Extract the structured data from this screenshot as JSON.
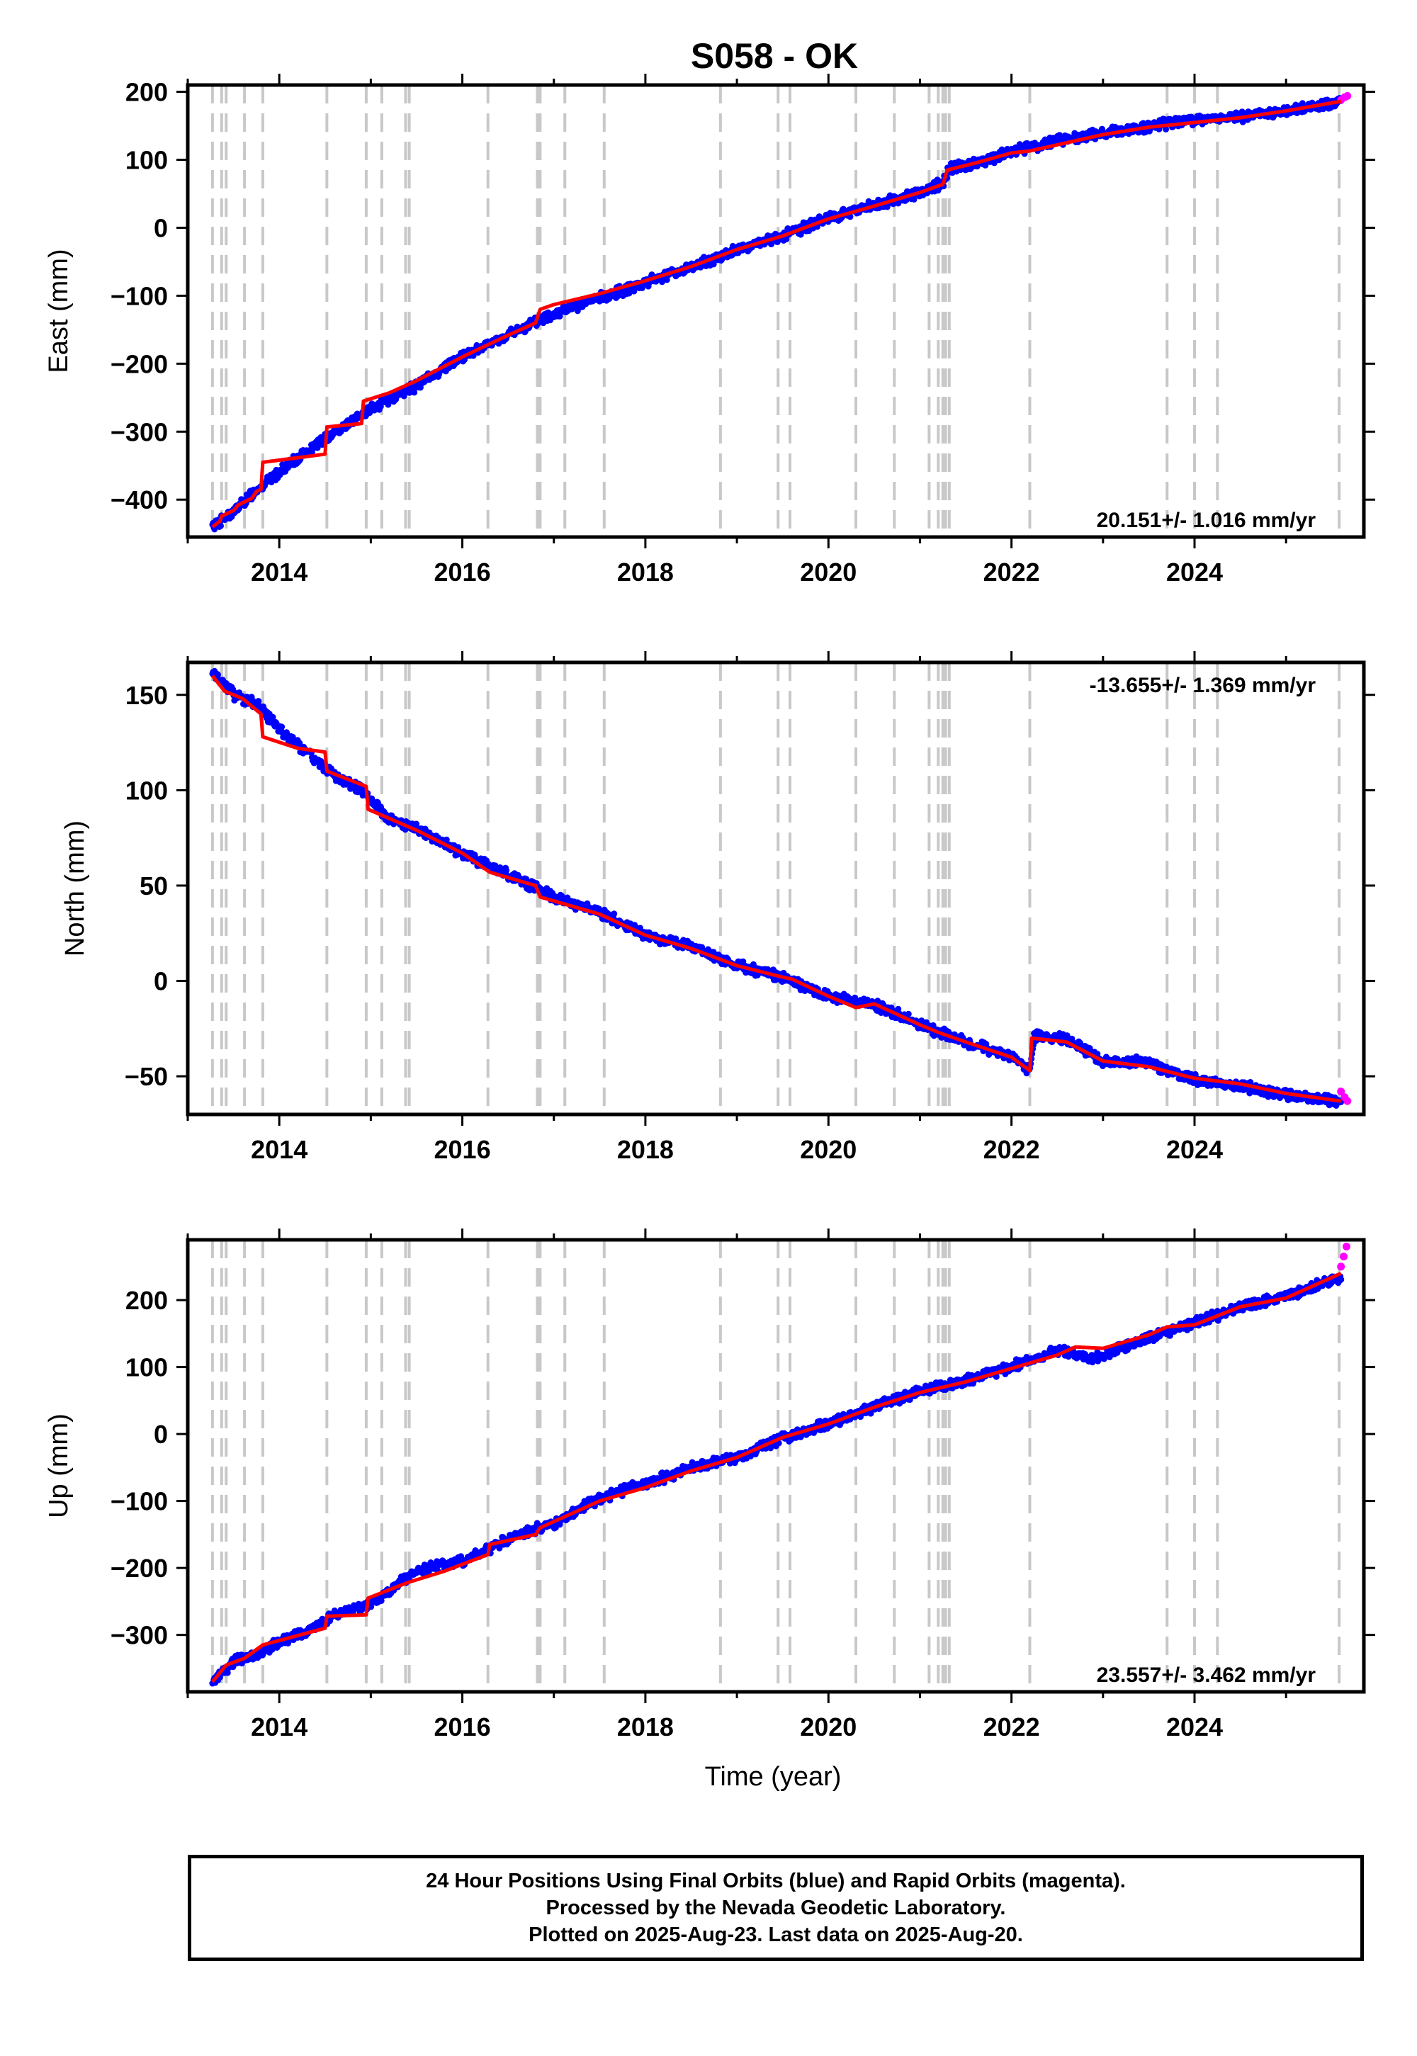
{
  "title": "S058 - OK",
  "footer": {
    "line1": "24 Hour Positions Using Final Orbits (blue) and Rapid Orbits (magenta).",
    "line2": "Processed by the Nevada Geodetic Laboratory.",
    "line3": "Plotted on 2025-Aug-23. Last data on 2025-Aug-20."
  },
  "colors": {
    "final_orbits": "#0000ff",
    "rapid_orbits": "#ff00ff",
    "model": "#ff0000",
    "event_lines": "#c8c8c8",
    "frame": "#000000"
  },
  "chart_data": [
    {
      "type": "scatter",
      "component": "East",
      "ylabel": "East (mm)",
      "xlabel": "",
      "xlim": [
        2013.0,
        2025.85
      ],
      "ylim": [
        -455,
        210
      ],
      "xticks": [
        2014,
        2016,
        2018,
        2020,
        2022,
        2024
      ],
      "yticks": [
        -400,
        -300,
        -200,
        -100,
        0,
        100,
        200
      ],
      "rate_label": "20.151+/- 1.016 mm/yr",
      "rate_position": "bottom-right",
      "grid": false,
      "final_series": [
        [
          2013.27,
          -440
        ],
        [
          2013.5,
          -418
        ],
        [
          2013.75,
          -385
        ],
        [
          2014.0,
          -360
        ],
        [
          2014.3,
          -330
        ],
        [
          2014.6,
          -300
        ],
        [
          2014.85,
          -280
        ],
        [
          2015.2,
          -252
        ],
        [
          2015.5,
          -232
        ],
        [
          2016.0,
          -190
        ],
        [
          2016.5,
          -158
        ],
        [
          2017.0,
          -126
        ],
        [
          2017.5,
          -104
        ],
        [
          2018.0,
          -80
        ],
        [
          2018.5,
          -58
        ],
        [
          2019.0,
          -33
        ],
        [
          2019.5,
          -12
        ],
        [
          2020.0,
          15
        ],
        [
          2020.5,
          32
        ],
        [
          2021.0,
          52
        ],
        [
          2021.25,
          66
        ],
        [
          2021.32,
          87
        ],
        [
          2021.6,
          95
        ],
        [
          2022.0,
          112
        ],
        [
          2022.5,
          128
        ],
        [
          2022.9,
          137
        ],
        [
          2023.5,
          148
        ],
        [
          2023.9,
          158
        ],
        [
          2024.5,
          163
        ],
        [
          2025.0,
          172
        ],
        [
          2025.6,
          185
        ]
      ],
      "rapid_series": [
        [
          2025.6,
          188
        ],
        [
          2025.64,
          192
        ],
        [
          2025.67,
          194
        ]
      ],
      "model_series": [
        [
          2013.27,
          -440
        ],
        [
          2013.35,
          -432
        ],
        [
          2013.37,
          -424
        ],
        [
          2013.5,
          -416
        ],
        [
          2013.55,
          -408
        ],
        [
          2013.7,
          -398
        ],
        [
          2013.75,
          -388
        ],
        [
          2013.8,
          -385
        ],
        [
          2013.82,
          -345
        ],
        [
          2014.5,
          -333
        ],
        [
          2014.52,
          -293
        ],
        [
          2014.9,
          -288
        ],
        [
          2014.92,
          -255
        ],
        [
          2015.2,
          -243
        ],
        [
          2015.5,
          -225
        ],
        [
          2016.0,
          -190
        ],
        [
          2016.5,
          -158
        ],
        [
          2016.8,
          -140
        ],
        [
          2016.85,
          -120
        ],
        [
          2017.0,
          -113
        ],
        [
          2017.5,
          -97
        ],
        [
          2018.0,
          -78
        ],
        [
          2018.5,
          -57
        ],
        [
          2019.0,
          -32
        ],
        [
          2019.5,
          -12
        ],
        [
          2020.0,
          13
        ],
        [
          2020.5,
          32
        ],
        [
          2021.0,
          52
        ],
        [
          2021.25,
          64
        ],
        [
          2021.3,
          85
        ],
        [
          2021.6,
          95
        ],
        [
          2022.0,
          110
        ],
        [
          2022.2,
          113
        ],
        [
          2022.5,
          122
        ],
        [
          2023.0,
          137
        ],
        [
          2023.5,
          148
        ],
        [
          2023.8,
          152
        ],
        [
          2024.5,
          162
        ],
        [
          2025.0,
          172
        ],
        [
          2025.6,
          186
        ]
      ],
      "event_years": [
        2013.27,
        2013.37,
        2013.42,
        2013.62,
        2013.82,
        2014.52,
        2014.95,
        2015.12,
        2015.38,
        2015.42,
        2016.28,
        2016.82,
        2016.85,
        2017.12,
        2017.55,
        2018.82,
        2019.45,
        2019.58,
        2020.3,
        2020.72,
        2021.1,
        2021.2,
        2021.25,
        2021.28,
        2021.32,
        2022.2,
        2023.7,
        2024.0,
        2024.25,
        2025.58
      ]
    },
    {
      "type": "scatter",
      "component": "North",
      "ylabel": "North (mm)",
      "xlabel": "",
      "xlim": [
        2013.0,
        2025.85
      ],
      "ylim": [
        -70,
        167
      ],
      "xticks": [
        2014,
        2016,
        2018,
        2020,
        2022,
        2024
      ],
      "yticks": [
        -50,
        0,
        50,
        100,
        150
      ],
      "rate_label": "-13.655+/- 1.369 mm/yr",
      "rate_position": "top-right",
      "grid": false,
      "final_series": [
        [
          2013.27,
          162
        ],
        [
          2013.5,
          150
        ],
        [
          2013.75,
          145
        ],
        [
          2014.0,
          132
        ],
        [
          2014.3,
          120
        ],
        [
          2014.6,
          108
        ],
        [
          2014.9,
          100
        ],
        [
          2015.2,
          85
        ],
        [
          2015.5,
          80
        ],
        [
          2016.0,
          67
        ],
        [
          2016.5,
          56
        ],
        [
          2017.0,
          44
        ],
        [
          2017.5,
          36
        ],
        [
          2018.0,
          24
        ],
        [
          2018.5,
          18
        ],
        [
          2019.0,
          8
        ],
        [
          2019.5,
          2
        ],
        [
          2020.0,
          -8
        ],
        [
          2020.5,
          -12
        ],
        [
          2021.0,
          -23
        ],
        [
          2021.5,
          -32
        ],
        [
          2022.0,
          -40
        ],
        [
          2022.2,
          -47
        ],
        [
          2022.25,
          -29
        ],
        [
          2022.6,
          -30
        ],
        [
          2023.0,
          -42
        ],
        [
          2023.5,
          -43
        ],
        [
          2024.0,
          -52
        ],
        [
          2024.5,
          -55
        ],
        [
          2025.0,
          -60
        ],
        [
          2025.6,
          -63
        ]
      ],
      "rapid_series": [
        [
          2025.6,
          -58
        ],
        [
          2025.64,
          -61
        ],
        [
          2025.67,
          -63
        ]
      ],
      "model_series": [
        [
          2013.27,
          160
        ],
        [
          2013.4,
          152
        ],
        [
          2013.6,
          148
        ],
        [
          2013.8,
          140
        ],
        [
          2013.82,
          128
        ],
        [
          2014.2,
          122
        ],
        [
          2014.5,
          120
        ],
        [
          2014.52,
          110
        ],
        [
          2014.95,
          102
        ],
        [
          2014.97,
          90
        ],
        [
          2015.5,
          79
        ],
        [
          2016.0,
          67
        ],
        [
          2016.3,
          57
        ],
        [
          2016.8,
          50
        ],
        [
          2016.85,
          44
        ],
        [
          2017.5,
          35
        ],
        [
          2018.0,
          24
        ],
        [
          2018.5,
          17
        ],
        [
          2019.0,
          8
        ],
        [
          2019.5,
          2
        ],
        [
          2019.6,
          1
        ],
        [
          2020.0,
          -8
        ],
        [
          2020.3,
          -14
        ],
        [
          2020.5,
          -12
        ],
        [
          2021.0,
          -23
        ],
        [
          2021.2,
          -27
        ],
        [
          2021.5,
          -32
        ],
        [
          2022.0,
          -40
        ],
        [
          2022.2,
          -47
        ],
        [
          2022.22,
          -30
        ],
        [
          2022.6,
          -32
        ],
        [
          2023.0,
          -42
        ],
        [
          2023.5,
          -45
        ],
        [
          2024.0,
          -51
        ],
        [
          2024.5,
          -54
        ],
        [
          2025.0,
          -59
        ],
        [
          2025.6,
          -63
        ]
      ],
      "event_years": [
        2013.27,
        2013.37,
        2013.42,
        2013.62,
        2013.82,
        2014.52,
        2014.95,
        2015.12,
        2015.38,
        2015.42,
        2016.28,
        2016.82,
        2016.85,
        2017.12,
        2017.55,
        2018.82,
        2019.45,
        2019.58,
        2020.3,
        2020.72,
        2021.1,
        2021.2,
        2021.25,
        2021.28,
        2021.32,
        2022.2,
        2023.7,
        2024.0,
        2024.25,
        2025.58
      ]
    },
    {
      "type": "scatter",
      "component": "Up",
      "ylabel": "Up (mm)",
      "xlabel": "Time (year)",
      "xlim": [
        2013.0,
        2025.85
      ],
      "ylim": [
        -385,
        290
      ],
      "xticks": [
        2014,
        2016,
        2018,
        2020,
        2022,
        2024
      ],
      "yticks": [
        -300,
        -200,
        -100,
        0,
        100,
        200
      ],
      "rate_label": "23.557+/- 3.462 mm/yr",
      "rate_position": "bottom-right",
      "grid": false,
      "final_series": [
        [
          2013.27,
          -370
        ],
        [
          2013.5,
          -340
        ],
        [
          2013.75,
          -330
        ],
        [
          2014.0,
          -310
        ],
        [
          2014.3,
          -295
        ],
        [
          2014.6,
          -270
        ],
        [
          2014.9,
          -258
        ],
        [
          2015.2,
          -235
        ],
        [
          2015.5,
          -205
        ],
        [
          2016.0,
          -190
        ],
        [
          2016.3,
          -170
        ],
        [
          2016.6,
          -150
        ],
        [
          2017.0,
          -135
        ],
        [
          2017.5,
          -95
        ],
        [
          2018.0,
          -75
        ],
        [
          2018.5,
          -50
        ],
        [
          2019.0,
          -35
        ],
        [
          2019.5,
          -5
        ],
        [
          2020.0,
          15
        ],
        [
          2020.5,
          40
        ],
        [
          2021.0,
          65
        ],
        [
          2021.5,
          80
        ],
        [
          2022.0,
          100
        ],
        [
          2022.5,
          125
        ],
        [
          2022.9,
          112
        ],
        [
          2023.5,
          145
        ],
        [
          2024.0,
          165
        ],
        [
          2024.5,
          190
        ],
        [
          2025.0,
          205
        ],
        [
          2025.6,
          235
        ]
      ],
      "rapid_series": [
        [
          2025.6,
          250
        ],
        [
          2025.63,
          265
        ],
        [
          2025.66,
          280
        ]
      ],
      "model_series": [
        [
          2013.27,
          -370
        ],
        [
          2013.42,
          -345
        ],
        [
          2013.62,
          -335
        ],
        [
          2013.82,
          -315
        ],
        [
          2014.5,
          -290
        ],
        [
          2014.52,
          -272
        ],
        [
          2014.95,
          -270
        ],
        [
          2014.97,
          -245
        ],
        [
          2015.4,
          -222
        ],
        [
          2015.8,
          -205
        ],
        [
          2016.28,
          -180
        ],
        [
          2016.3,
          -165
        ],
        [
          2016.8,
          -150
        ],
        [
          2016.85,
          -140
        ],
        [
          2017.5,
          -100
        ],
        [
          2018.0,
          -80
        ],
        [
          2018.5,
          -55
        ],
        [
          2019.0,
          -35
        ],
        [
          2019.5,
          -5
        ],
        [
          2020.0,
          15
        ],
        [
          2020.5,
          40
        ],
        [
          2021.0,
          62
        ],
        [
          2021.5,
          78
        ],
        [
          2022.0,
          98
        ],
        [
          2022.5,
          118
        ],
        [
          2022.7,
          130
        ],
        [
          2023.0,
          128
        ],
        [
          2023.5,
          148
        ],
        [
          2023.7,
          160
        ],
        [
          2024.0,
          163
        ],
        [
          2024.5,
          190
        ],
        [
          2025.0,
          203
        ],
        [
          2025.6,
          240
        ]
      ],
      "event_years": [
        2013.27,
        2013.37,
        2013.42,
        2013.62,
        2013.82,
        2014.52,
        2014.95,
        2015.12,
        2015.38,
        2015.42,
        2016.28,
        2016.82,
        2016.85,
        2017.12,
        2017.55,
        2018.82,
        2019.45,
        2019.58,
        2020.3,
        2020.72,
        2021.1,
        2021.2,
        2021.25,
        2021.28,
        2021.32,
        2022.2,
        2023.7,
        2024.0,
        2024.25,
        2025.58
      ]
    }
  ]
}
